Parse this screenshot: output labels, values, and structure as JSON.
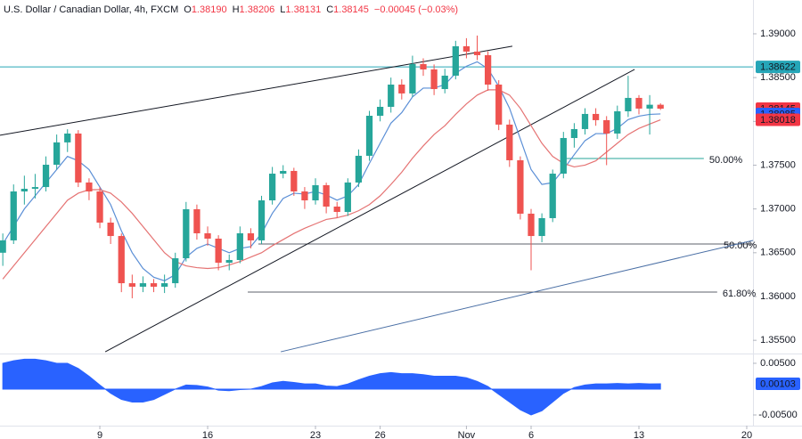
{
  "chart_data": [
    {
      "type": "candlestick",
      "title": "U.S. Dollar / Canadian Dollar, 4h, FXCM",
      "ohlc_legend": [
        {
          "key": "O",
          "value": "1.38190"
        },
        {
          "key": "H",
          "value": "1.38206"
        },
        {
          "key": "L",
          "value": "1.38131"
        },
        {
          "key": "C",
          "value": "1.38145"
        }
      ],
      "change": "−0.00045 (−0.03%)",
      "x": [
        -4.5,
        -4,
        -3.5,
        -3,
        -2.5,
        -2,
        -1.5,
        -1,
        -0.5,
        0,
        0.5,
        1,
        1.5,
        2,
        2.5,
        3,
        3.5,
        4,
        4.5,
        5,
        5.5,
        6,
        6.5,
        7,
        7.5,
        8,
        8.5,
        9,
        9.5,
        10,
        10.5,
        11,
        11.5,
        12,
        12.5,
        13,
        13.5,
        14,
        14.5,
        15,
        15.5,
        16,
        16.5,
        17,
        17.5,
        18,
        18.5,
        19,
        19.5,
        20,
        20.5,
        21,
        21.5,
        22,
        22.5,
        23,
        23.5,
        24,
        24.5,
        25,
        25.5,
        26
      ],
      "open": [
        1.365,
        1.36641,
        1.372,
        1.3723,
        1.3725,
        1.37505,
        1.3776,
        1.37861,
        1.37302,
        1.372,
        1.36844,
        1.36691,
        1.36152,
        1.36112,
        1.36152,
        1.36112,
        1.36152,
        1.36437,
        1.36997,
        1.36722,
        1.36661,
        1.36386,
        1.36417,
        1.36722,
        1.36641,
        1.37098,
        1.37403,
        1.37434,
        1.372,
        1.37098,
        1.37271,
        1.37027,
        1.36966,
        1.37302,
        1.37607,
        1.38064,
        1.38166,
        1.3842,
        1.38319,
        1.38654,
        1.38593,
        1.38369,
        1.38522,
        1.38858,
        1.38797,
        1.38756,
        1.3842,
        1.37963,
        1.37556,
        1.36946,
        1.36691,
        1.36895,
        1.37403,
        1.3781,
        1.37912,
        1.38085,
        1.38014,
        1.37861,
        1.38115,
        1.38268,
        1.38146,
        1.3819
      ],
      "high": [
        1.3672,
        1.3728,
        1.3738,
        1.374,
        1.376,
        1.3785,
        1.3791,
        1.379,
        1.3735,
        1.3725,
        1.369,
        1.3672,
        1.3625,
        1.3623,
        1.362,
        1.3625,
        1.365,
        1.3708,
        1.3705,
        1.368,
        1.367,
        1.3648,
        1.368,
        1.3678,
        1.3715,
        1.3748,
        1.375,
        1.3747,
        1.3725,
        1.3735,
        1.373,
        1.3708,
        1.3735,
        1.3768,
        1.3812,
        1.3825,
        1.385,
        1.3848,
        1.3875,
        1.3872,
        1.3865,
        1.386,
        1.3892,
        1.3895,
        1.3898,
        1.388,
        1.3847,
        1.3802,
        1.376,
        1.37,
        1.3695,
        1.3745,
        1.3788,
        1.3798,
        1.3815,
        1.3815,
        1.3806,
        1.3818,
        1.3852,
        1.383,
        1.383,
        1.38206
      ],
      "low": [
        1.3635,
        1.366,
        1.3705,
        1.3712,
        1.372,
        1.3745,
        1.3765,
        1.3725,
        1.371,
        1.3678,
        1.366,
        1.3605,
        1.3598,
        1.3605,
        1.3605,
        1.3604,
        1.361,
        1.364,
        1.3665,
        1.3658,
        1.363,
        1.363,
        1.3638,
        1.3655,
        1.366,
        1.3705,
        1.3735,
        1.3715,
        1.37,
        1.3705,
        1.3695,
        1.369,
        1.3692,
        1.3725,
        1.3755,
        1.38,
        1.381,
        1.3825,
        1.3828,
        1.3852,
        1.383,
        1.3832,
        1.3848,
        1.3872,
        1.387,
        1.3835,
        1.379,
        1.3748,
        1.3688,
        1.363,
        1.3662,
        1.3685,
        1.3735,
        1.377,
        1.3785,
        1.3795,
        1.375,
        1.378,
        1.3805,
        1.3808,
        1.3785,
        1.38131
      ],
      "close": [
        1.36641,
        1.372,
        1.3723,
        1.3725,
        1.37505,
        1.3776,
        1.37861,
        1.37302,
        1.372,
        1.36844,
        1.36691,
        1.36152,
        1.36112,
        1.36152,
        1.36112,
        1.36152,
        1.36437,
        1.36997,
        1.36722,
        1.36661,
        1.36386,
        1.36417,
        1.36722,
        1.36641,
        1.37098,
        1.37403,
        1.37434,
        1.372,
        1.37098,
        1.37271,
        1.37027,
        1.36966,
        1.37302,
        1.37607,
        1.38064,
        1.38166,
        1.3842,
        1.38319,
        1.38654,
        1.38593,
        1.38369,
        1.38522,
        1.38858,
        1.38797,
        1.38756,
        1.3842,
        1.37963,
        1.37556,
        1.36946,
        1.36691,
        1.36895,
        1.37403,
        1.3781,
        1.37912,
        1.38085,
        1.38014,
        1.37861,
        1.38115,
        1.38268,
        1.38146,
        1.3819,
        1.38145
      ],
      "up_color": "#26a69a",
      "down_color": "#ef5350",
      "series": [
        {
          "color": "#5b8fd6",
          "values": [
            1.366,
            1.368,
            1.37,
            1.3715,
            1.373,
            1.3745,
            1.376,
            1.3755,
            1.3745,
            1.3725,
            1.3705,
            1.3675,
            1.365,
            1.3632,
            1.3622,
            1.3618,
            1.3625,
            1.3645,
            1.3655,
            1.366,
            1.3655,
            1.365,
            1.3655,
            1.3657,
            1.3672,
            1.3695,
            1.3712,
            1.3718,
            1.3717,
            1.372,
            1.3716,
            1.371,
            1.3715,
            1.3728,
            1.3752,
            1.3775,
            1.3798,
            1.381,
            1.3828,
            1.3838,
            1.3838,
            1.3842,
            1.3855,
            1.3863,
            1.3868,
            1.386,
            1.384,
            1.3815,
            1.378,
            1.3745,
            1.3728,
            1.373,
            1.3745,
            1.3762,
            1.3778,
            1.3786,
            1.3786,
            1.3792,
            1.3802,
            1.3806,
            1.3808,
            1.38085
          ]
        },
        {
          "color": "#e57373",
          "values": [
            1.362,
            1.3635,
            1.365,
            1.3665,
            1.368,
            1.3695,
            1.371,
            1.3718,
            1.3722,
            1.3722,
            1.3718,
            1.3708,
            1.3695,
            1.368,
            1.3665,
            1.365,
            1.364,
            1.3635,
            1.3633,
            1.3632,
            1.3633,
            1.3636,
            1.364,
            1.3645,
            1.365,
            1.3658,
            1.3665,
            1.3672,
            1.3678,
            1.3683,
            1.3688,
            1.369,
            1.3693,
            1.3698,
            1.3705,
            1.3715,
            1.3728,
            1.3742,
            1.3758,
            1.3772,
            1.3785,
            1.3795,
            1.3808,
            1.382,
            1.383,
            1.3836,
            1.3836,
            1.383,
            1.3815,
            1.3795,
            1.3775,
            1.376,
            1.3752,
            1.3748,
            1.375,
            1.3755,
            1.3765,
            1.3775,
            1.3785,
            1.3792,
            1.3797,
            1.38018
          ]
        }
      ],
      "xlim": [
        -4.63,
        30.29
      ],
      "ylim": [
        1.35339,
        1.39386
      ],
      "yticks": [
        {
          "value": 1.39,
          "label": "1.39000"
        },
        {
          "value": 1.385,
          "label": "1.38500"
        },
        {
          "value": 1.38,
          "label": "1.38000"
        },
        {
          "value": 1.375,
          "label": "1.37500"
        },
        {
          "value": 1.37,
          "label": "1.37000"
        },
        {
          "value": 1.365,
          "label": "1.36500"
        },
        {
          "value": 1.36,
          "label": "1.36000"
        },
        {
          "value": 1.355,
          "label": "1.35500"
        }
      ],
      "hlines": [
        {
          "value": 1.38622,
          "label": "1.38622",
          "color": "#26a6b8"
        }
      ],
      "price_labels": [
        {
          "value": 1.38145,
          "label": "1.38145",
          "color": "#f23645"
        },
        {
          "value": 1.38085,
          "label": "1.38085",
          "color": "#2962ff"
        },
        {
          "value": 1.38018,
          "label": "1.38018",
          "color": "#f23645"
        }
      ],
      "trendlines": [
        {
          "points": [
            [
              -4.63,
              1.37841
            ],
            [
              19.13,
              1.38858
            ]
          ],
          "color": "#131722"
        },
        {
          "points": [
            [
              0.25,
              1.35369
            ],
            [
              24.8,
              1.38593
            ]
          ],
          "color": "#131722"
        },
        {
          "points": [
            [
              8.39,
              1.35369
            ],
            [
              30.29,
              1.36641
            ]
          ],
          "color": "#4a6fa5"
        }
      ],
      "levels": [
        {
          "label": "50.00%",
          "value": 1.37576,
          "x_range": [
            21.4,
            28.01
          ],
          "color": "#26a69a"
        },
        {
          "label": "50.00%",
          "value": 1.366,
          "x_range": [
            7.35,
            30.29
          ],
          "color": "#7e57c2"
        },
        {
          "label": "61.80%",
          "value": 1.36051,
          "x_range": [
            6.86,
            28.63
          ],
          "color": "#7e57c2"
        }
      ]
    },
    {
      "type": "area",
      "x": [
        -4.5,
        -4,
        -3.5,
        -3,
        -2.5,
        -2,
        -1.5,
        -1,
        -0.5,
        0,
        0.5,
        1,
        1.5,
        2,
        2.5,
        3,
        3.5,
        4,
        4.5,
        5,
        5.5,
        6,
        6.5,
        7,
        7.5,
        8,
        8.5,
        9,
        9.5,
        10,
        10.5,
        11,
        11.5,
        12,
        12.5,
        13,
        13.5,
        14,
        14.5,
        15,
        15.5,
        16,
        16.5,
        17,
        17.5,
        18,
        18.5,
        19,
        19.5,
        20,
        20.5,
        21,
        21.5,
        22,
        22.5,
        23,
        23.5,
        24,
        24.5,
        25,
        25.5,
        26
      ],
      "values": [
        0.005,
        0.0055,
        0.0058,
        0.0058,
        0.0055,
        0.005,
        0.005,
        0.004,
        0.0025,
        0.0008,
        -0.0008,
        -0.002,
        -0.0025,
        -0.0025,
        -0.002,
        -0.001,
        0,
        0.0008,
        0.0007,
        0.0004,
        -0.0002,
        -0.0003,
        -0.0001,
        0,
        0.0005,
        0.0012,
        0.0015,
        0.0013,
        0.001,
        0.001,
        0.0006,
        0.0005,
        0.001,
        0.0018,
        0.0025,
        0.003,
        0.0032,
        0.003,
        0.003,
        0.0028,
        0.0025,
        0.0025,
        0.0025,
        0.0022,
        0.0015,
        0.0005,
        -0.001,
        -0.0025,
        -0.004,
        -0.005,
        -0.0042,
        -0.0025,
        -0.0008,
        0.0003,
        0.0008,
        0.001,
        0.001,
        0.0011,
        0.001,
        0.0011,
        0.001,
        0.00103
      ],
      "color": "#2962ff",
      "last_label": {
        "value": 0.00103,
        "label": "0.00103",
        "color": "#2962ff"
      },
      "xlim": [
        -4.63,
        30.29
      ],
      "ylim": [
        -0.00707,
        0.00672
      ],
      "yticks": [
        {
          "value": 0.005,
          "label": "0.00500"
        },
        {
          "value": -0.005,
          "label": "-0.00500"
        }
      ],
      "xticks": [
        {
          "value": 0,
          "label": "9"
        },
        {
          "value": 5,
          "label": "16"
        },
        {
          "value": 10,
          "label": "23"
        },
        {
          "value": 13,
          "label": "26"
        },
        {
          "value": 17,
          "label": "Nov"
        },
        {
          "value": 20,
          "label": "6"
        },
        {
          "value": 25,
          "label": "13"
        },
        {
          "value": 30,
          "label": "20"
        }
      ]
    }
  ]
}
